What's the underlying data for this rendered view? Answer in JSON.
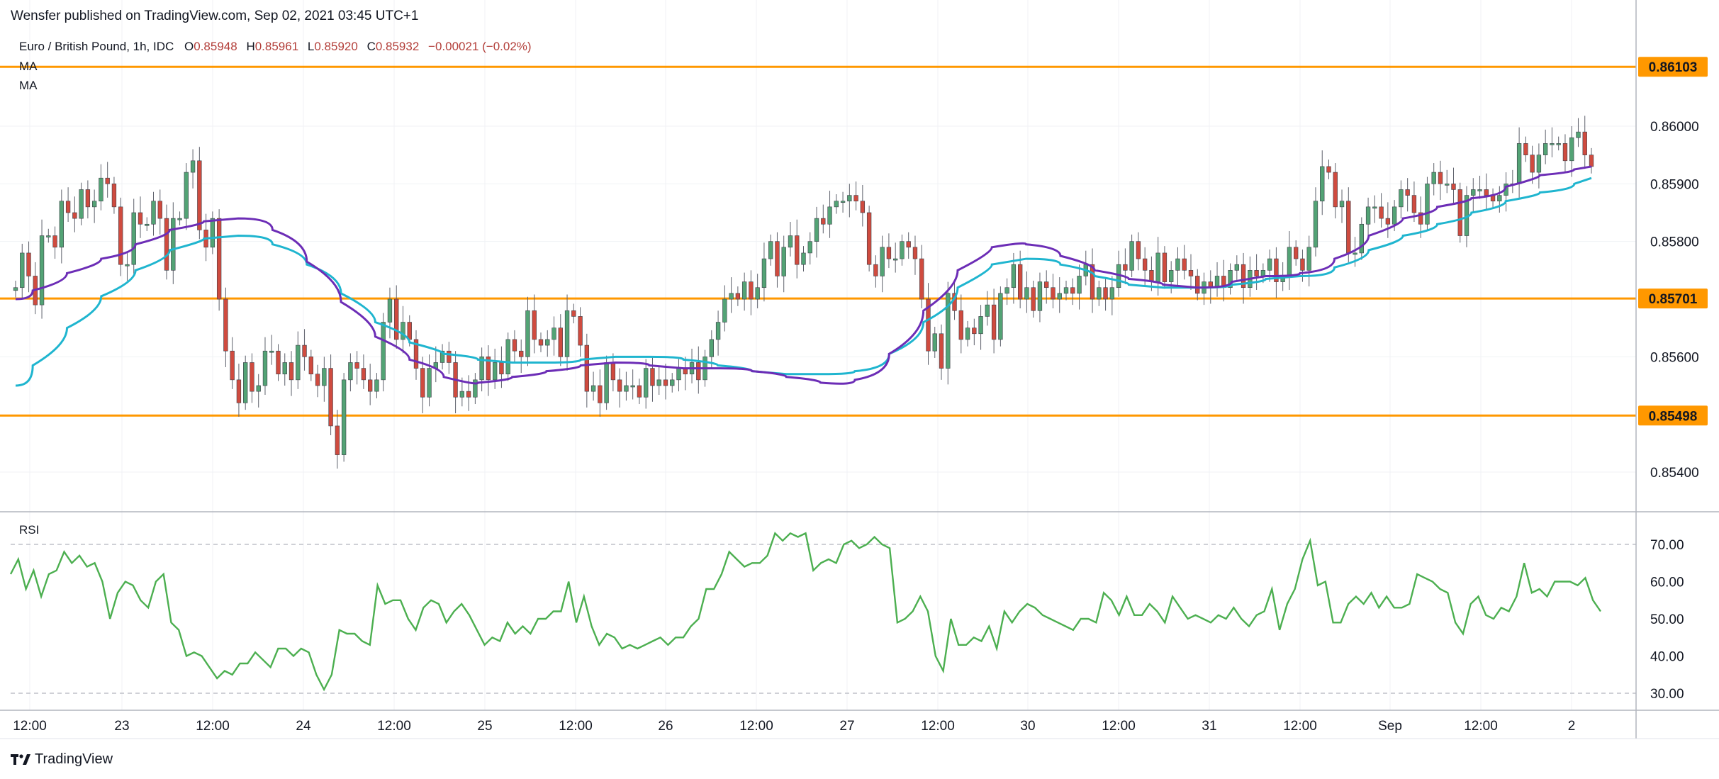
{
  "header": {
    "publisher": "Wensfer published on TradingView.com, Sep 02, 2021 03:45 UTC+1",
    "symbol": "Euro / British Pound, 1h, IDC",
    "open_key": "O",
    "open": "0.85948",
    "high_key": "H",
    "high": "0.85961",
    "low_key": "L",
    "low": "0.85920",
    "close_key": "C",
    "close": "0.85932",
    "change": "−0.00021 (−0.02%)",
    "ma1_label": "MA",
    "ma2_label": "MA"
  },
  "rsi_label": "RSI",
  "brand": "TradingView",
  "colors": {
    "up": "#53a375",
    "down": "#cf4b3f",
    "ma_fast": "#6c2db6",
    "ma_slow": "#1fb5cf",
    "level": "#ff9800",
    "rsi": "#4caf50",
    "label_bg": "#ff9800",
    "ohlc_value": "#b33f3a"
  },
  "chart_data": [
    {
      "type": "candlestick",
      "title": "Euro / British Pound, 1h, IDC",
      "yticks": [
        "0.86000",
        "0.85900",
        "0.85800",
        "0.85600",
        "0.85400"
      ],
      "ylim": [
        0.8532,
        0.8622
      ],
      "xticks": [
        "12:00",
        "23",
        "12:00",
        "24",
        "12:00",
        "25",
        "12:00",
        "26",
        "12:00",
        "27",
        "12:00",
        "30",
        "12:00",
        "31",
        "12:00",
        "Sep",
        "12:00",
        "2"
      ],
      "horizontal_levels": [
        {
          "value": 0.86103,
          "label": "0.86103"
        },
        {
          "value": 0.85701,
          "label": "0.85701"
        },
        {
          "value": 0.85498,
          "label": "0.85498"
        }
      ],
      "series": [
        {
          "name": "price",
          "values": [
            0.8572,
            0.8578,
            0.8574,
            0.8569,
            0.8581,
            0.8581,
            0.8579,
            0.8587,
            0.8585,
            0.8584,
            0.8589,
            0.8586,
            0.8587,
            0.8591,
            0.859,
            0.8586,
            0.8576,
            0.8576,
            0.8585,
            0.8583,
            0.8583,
            0.8587,
            0.8584,
            0.8575,
            0.8584,
            0.8584,
            0.8592,
            0.8594,
            0.8582,
            0.8579,
            0.8584,
            0.857,
            0.8561,
            0.8556,
            0.8552,
            0.8559,
            0.8554,
            0.8555,
            0.8561,
            0.8561,
            0.8557,
            0.8559,
            0.8556,
            0.8562,
            0.856,
            0.8557,
            0.8555,
            0.8558,
            0.8548,
            0.8543,
            0.8556,
            0.8559,
            0.8558,
            0.8556,
            0.8554,
            0.8556,
            0.8566,
            0.857,
            0.8563,
            0.8566,
            0.8563,
            0.8558,
            0.8553,
            0.8558,
            0.8559,
            0.8561,
            0.8559,
            0.8553,
            0.8554,
            0.8553,
            0.8556,
            0.856,
            0.8556,
            0.8559,
            0.8557,
            0.8563,
            0.8561,
            0.856,
            0.8568,
            0.8563,
            0.8562,
            0.8563,
            0.8565,
            0.856,
            0.8568,
            0.8567,
            0.8562,
            0.8554,
            0.8555,
            0.8552,
            0.8559,
            0.8556,
            0.8554,
            0.8555,
            0.8555,
            0.8553,
            0.8558,
            0.8555,
            0.8556,
            0.8555,
            0.8556,
            0.8558,
            0.8557,
            0.8559,
            0.8556,
            0.856,
            0.8563,
            0.8566,
            0.857,
            0.8571,
            0.857,
            0.8573,
            0.857,
            0.8572,
            0.8577,
            0.858,
            0.8574,
            0.8579,
            0.8581,
            0.8576,
            0.8578,
            0.858,
            0.8584,
            0.8583,
            0.8586,
            0.8587,
            0.8587,
            0.8588,
            0.8587,
            0.8585,
            0.8576,
            0.8574,
            0.8579,
            0.8577,
            0.8577,
            0.858,
            0.8579,
            0.8577,
            0.857,
            0.8561,
            0.8564,
            0.8558,
            0.8571,
            0.8568,
            0.8563,
            0.8565,
            0.8564,
            0.8567,
            0.8569,
            0.8563,
            0.8571,
            0.8572,
            0.8576,
            0.857,
            0.8572,
            0.8568,
            0.8573,
            0.8572,
            0.857,
            0.8571,
            0.8572,
            0.8571,
            0.8574,
            0.8576,
            0.857,
            0.8572,
            0.857,
            0.8572,
            0.8576,
            0.8575,
            0.858,
            0.8577,
            0.8575,
            0.8573,
            0.8578,
            0.8573,
            0.8575,
            0.8577,
            0.8575,
            0.8574,
            0.8571,
            0.8573,
            0.8572,
            0.8574,
            0.8572,
            0.8575,
            0.8576,
            0.8572,
            0.8575,
            0.8574,
            0.8575,
            0.8577,
            0.8573,
            0.8574,
            0.8579,
            0.8577,
            0.8575,
            0.8579,
            0.8587,
            0.8593,
            0.8592,
            0.8586,
            0.8587,
            0.8578,
            0.8578,
            0.8583,
            0.8586,
            0.8586,
            0.8584,
            0.8583,
            0.8586,
            0.8589,
            0.8588,
            0.8585,
            0.8583,
            0.859,
            0.8592,
            0.859,
            0.859,
            0.8589,
            0.8581,
            0.8588,
            0.8589,
            0.8589,
            0.8588,
            0.8587,
            0.8588,
            0.859,
            0.859,
            0.8597,
            0.8595,
            0.8592,
            0.8595,
            0.8597,
            0.8597,
            0.8597,
            0.8594,
            0.8598,
            0.8599,
            0.8595,
            0.8593
          ]
        },
        {
          "name": "MA fast",
          "values": [
            0.857,
            0.8573,
            0.8576,
            0.8578,
            0.8581,
            0.8583,
            0.8584,
            0.8584,
            0.858,
            0.8573,
            0.8566,
            0.8561,
            0.8558,
            0.8555,
            0.8556,
            0.8557,
            0.8558,
            0.8559,
            0.8559,
            0.8558,
            0.8558,
            0.8558,
            0.8557,
            0.8556,
            0.8555,
            0.8557,
            0.8564,
            0.8572,
            0.8578,
            0.858,
            0.8579,
            0.8576,
            0.8574,
            0.8573,
            0.8572,
            0.8572,
            0.8574,
            0.8574,
            0.8575,
            0.8579,
            0.8583,
            0.8585,
            0.8587,
            0.8588,
            0.8591,
            0.8592,
            0.8593
          ]
        },
        {
          "name": "MA slow",
          "values": [
            0.8555,
            0.8562,
            0.8568,
            0.8573,
            0.8577,
            0.858,
            0.8581,
            0.8581,
            0.8578,
            0.8574,
            0.8568,
            0.8564,
            0.8561,
            0.856,
            0.8559,
            0.8559,
            0.8559,
            0.856,
            0.856,
            0.856,
            0.8559,
            0.8558,
            0.8557,
            0.8557,
            0.8557,
            0.8558,
            0.8563,
            0.8569,
            0.8575,
            0.8577,
            0.8577,
            0.8575,
            0.8573,
            0.8572,
            0.8572,
            0.8572,
            0.8573,
            0.8574,
            0.8574,
            0.8577,
            0.858,
            0.8582,
            0.8584,
            0.8586,
            0.8588,
            0.8589,
            0.8591
          ]
        }
      ]
    },
    {
      "type": "line",
      "title": "RSI",
      "yticks": [
        "70.00",
        "60.00",
        "50.00",
        "40.00",
        "30.00"
      ],
      "ylim": [
        27,
        75
      ],
      "dashed_levels": [
        70,
        30
      ],
      "series": [
        {
          "name": "RSI",
          "values": [
            62,
            66,
            58,
            63,
            56,
            62,
            63,
            68,
            65,
            67,
            64,
            65,
            60,
            50,
            57,
            60,
            59,
            55,
            53,
            60,
            62,
            49,
            47,
            40,
            41,
            40,
            37,
            34,
            36,
            35,
            38,
            38,
            41,
            39,
            37,
            42,
            42,
            40,
            42,
            41,
            35,
            31,
            35,
            47,
            46,
            46,
            44,
            43,
            59,
            54,
            55,
            55,
            50,
            47,
            53,
            55,
            54,
            49,
            52,
            54,
            51,
            47,
            43,
            45,
            44,
            49,
            46,
            48,
            46,
            50,
            50,
            52,
            52,
            60,
            49,
            56,
            48,
            43,
            46,
            45,
            42,
            43,
            42,
            43,
            44,
            45,
            43,
            45,
            45,
            48,
            50,
            58,
            58,
            62,
            68,
            66,
            64,
            65,
            65,
            67,
            73,
            71,
            73,
            72,
            73,
            63,
            65,
            66,
            65,
            70,
            71,
            69,
            70,
            72,
            70,
            69,
            49,
            50,
            52,
            56,
            52,
            40,
            36,
            50,
            43,
            43,
            45,
            44,
            48,
            42,
            52,
            49,
            52,
            54,
            53,
            51,
            50,
            49,
            48,
            47,
            50,
            50,
            49,
            57,
            55,
            51,
            56,
            51,
            51,
            54,
            52,
            49,
            56,
            53,
            50,
            51,
            50,
            49,
            51,
            50,
            53,
            50,
            48,
            51,
            52,
            58,
            47,
            54,
            58,
            66,
            71,
            59,
            60,
            49,
            49,
            54,
            56,
            54,
            57,
            53,
            56,
            53,
            53,
            54,
            62,
            61,
            60,
            58,
            57,
            49,
            46,
            54,
            56,
            51,
            50,
            53,
            52,
            56,
            65,
            57,
            58,
            56,
            60,
            60,
            60,
            59,
            61,
            55,
            52
          ]
        }
      ]
    }
  ]
}
